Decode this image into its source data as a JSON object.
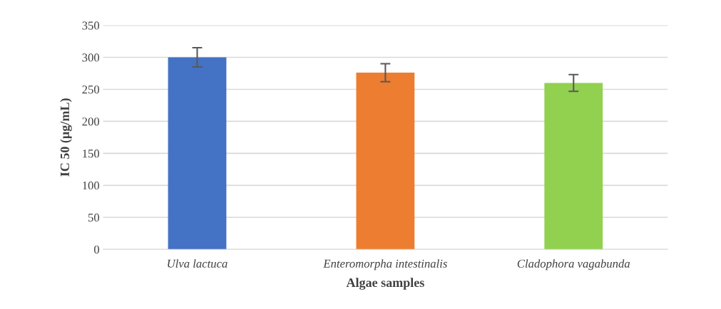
{
  "chart_data": {
    "type": "bar",
    "xlabel": "Algae samples",
    "ylabel": "IC 50 (µg/mL)",
    "categories": [
      "Ulva lactuca",
      "Enteromorpha intestinalis",
      "Cladophora vagabunda"
    ],
    "values": [
      300,
      276,
      260
    ],
    "colors": [
      "#4472c4",
      "#ed7d31",
      "#92d050"
    ],
    "errors": [
      15,
      14,
      13
    ],
    "ylim": [
      0,
      350
    ],
    "yticks": [
      0,
      50,
      100,
      150,
      200,
      250,
      300,
      350
    ],
    "grid": "y"
  }
}
